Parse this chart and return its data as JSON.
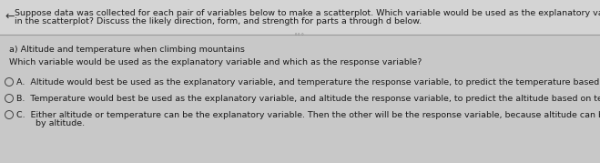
{
  "bg_top": "#d0d0d0",
  "bg_bottom": "#c8c8c8",
  "bg_main": "#cccccc",
  "white_panel": "#f0f0f0",
  "header_text_line1": "Suppose data was collected for each pair of variables below to make a scatterplot. Which variable would be used as the explanatory variable and which as the response variable? Why? What is expected",
  "header_text_line2": "in the scatterplot? Discuss the likely direction, form, and strength for parts a through d below.",
  "section_a": "a) Altitude and temperature when climbing mountains",
  "question": "Which variable would be used as the explanatory variable and which as the response variable?",
  "option_A": "A.  Altitude would best be used as the explanatory variable, and temperature the response variable, to predict the temperature based on altitude.",
  "option_B": "B.  Temperature would best be used as the explanatory variable, and altitude the response variable, to predict the altitude based on temperature.",
  "option_C_line1": "C.  Either altitude or temperature can be the explanatory variable. Then the other will be the response variable, because altitude can be predicted by temperature, and temperature can be predicted",
  "option_C_line2": "       by altitude.",
  "text_color": "#1a1a1a",
  "divider_color": "#999999",
  "radio_color": "#444444",
  "arrow_color": "#333333",
  "header_fontsize": 6.8,
  "body_fontsize": 6.8
}
